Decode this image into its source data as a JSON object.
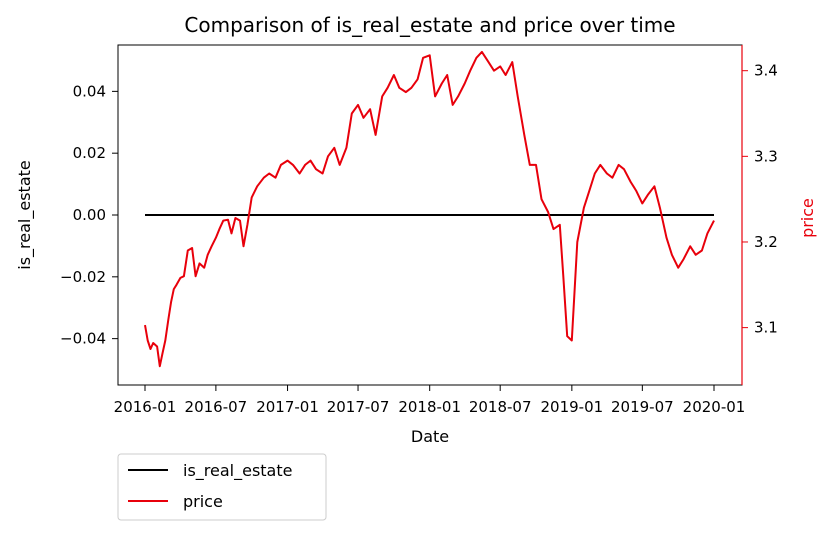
{
  "chart_data": {
    "type": "line",
    "title": "Comparison of is_real_estate and price over time",
    "xlabel": "Date",
    "ylabel_left": "is_real_estate",
    "ylabel_right": "price",
    "x_ticks": [
      "2016-01",
      "2016-07",
      "2017-01",
      "2017-07",
      "2018-01",
      "2018-07",
      "2019-01",
      "2019-07",
      "2020-01"
    ],
    "y_left_ticks": [
      "−0.04",
      "−0.02",
      "0.00",
      "0.02",
      "0.04"
    ],
    "y_right_ticks": [
      "3.1",
      "3.2",
      "3.3",
      "3.4"
    ],
    "y_left_lim": [
      -0.055,
      0.055
    ],
    "y_right_lim": [
      3.033,
      3.43
    ],
    "grid": false,
    "legend_position": "below-left",
    "colors": {
      "is_real_estate": "#000000",
      "price": "#e8000b",
      "right_axis": "#e8000b"
    },
    "series": [
      {
        "name": "is_real_estate",
        "axis": "left",
        "x": [
          "2016-01-01",
          "2020-01-01"
        ],
        "values": [
          0.0,
          0.0
        ]
      },
      {
        "name": "price",
        "axis": "right",
        "x": [
          "2016-01-01",
          "2016-01-08",
          "2016-01-15",
          "2016-01-22",
          "2016-02-01",
          "2016-02-08",
          "2016-02-15",
          "2016-02-22",
          "2016-03-01",
          "2016-03-08",
          "2016-03-15",
          "2016-03-22",
          "2016-04-01",
          "2016-04-10",
          "2016-04-20",
          "2016-05-01",
          "2016-05-10",
          "2016-05-20",
          "2016-06-01",
          "2016-06-10",
          "2016-06-20",
          "2016-07-01",
          "2016-07-10",
          "2016-07-20",
          "2016-08-01",
          "2016-08-10",
          "2016-08-20",
          "2016-09-01",
          "2016-09-10",
          "2016-09-20",
          "2016-10-01",
          "2016-10-15",
          "2016-11-01",
          "2016-11-15",
          "2016-12-01",
          "2016-12-15",
          "2017-01-01",
          "2017-01-15",
          "2017-02-01",
          "2017-02-15",
          "2017-03-01",
          "2017-03-15",
          "2017-04-01",
          "2017-04-15",
          "2017-05-01",
          "2017-05-15",
          "2017-06-01",
          "2017-06-15",
          "2017-07-01",
          "2017-07-15",
          "2017-08-01",
          "2017-08-15",
          "2017-09-01",
          "2017-09-15",
          "2017-10-01",
          "2017-10-15",
          "2017-11-01",
          "2017-11-15",
          "2017-12-01",
          "2017-12-15",
          "2018-01-01",
          "2018-01-15",
          "2018-02-01",
          "2018-02-15",
          "2018-03-01",
          "2018-03-15",
          "2018-04-01",
          "2018-04-15",
          "2018-05-01",
          "2018-05-15",
          "2018-06-01",
          "2018-06-15",
          "2018-07-01",
          "2018-07-15",
          "2018-08-01",
          "2018-08-15",
          "2018-09-01",
          "2018-09-15",
          "2018-10-01",
          "2018-10-15",
          "2018-11-01",
          "2018-11-15",
          "2018-12-01",
          "2018-12-10",
          "2018-12-20",
          "2019-01-01",
          "2019-01-15",
          "2019-02-01",
          "2019-02-15",
          "2019-03-01",
          "2019-03-15",
          "2019-04-01",
          "2019-04-15",
          "2019-05-01",
          "2019-05-15",
          "2019-06-01",
          "2019-06-15",
          "2019-07-01",
          "2019-07-15",
          "2019-08-01",
          "2019-08-15",
          "2019-09-01",
          "2019-09-15",
          "2019-10-01",
          "2019-10-15",
          "2019-11-01",
          "2019-11-15",
          "2019-12-01",
          "2019-12-15",
          "2020-01-01"
        ],
        "values": [
          3.103,
          3.085,
          3.075,
          3.082,
          3.078,
          3.055,
          3.07,
          3.085,
          3.11,
          3.13,
          3.145,
          3.15,
          3.158,
          3.16,
          3.19,
          3.193,
          3.16,
          3.175,
          3.17,
          3.185,
          3.195,
          3.205,
          3.215,
          3.225,
          3.226,
          3.21,
          3.228,
          3.225,
          3.195,
          3.22,
          3.252,
          3.265,
          3.275,
          3.28,
          3.275,
          3.29,
          3.295,
          3.29,
          3.28,
          3.29,
          3.295,
          3.285,
          3.28,
          3.3,
          3.31,
          3.29,
          3.31,
          3.35,
          3.36,
          3.345,
          3.355,
          3.325,
          3.37,
          3.38,
          3.395,
          3.38,
          3.375,
          3.38,
          3.39,
          3.415,
          3.418,
          3.37,
          3.385,
          3.395,
          3.36,
          3.37,
          3.385,
          3.4,
          3.415,
          3.422,
          3.41,
          3.4,
          3.405,
          3.395,
          3.41,
          3.37,
          3.325,
          3.29,
          3.29,
          3.25,
          3.235,
          3.215,
          3.22,
          3.16,
          3.09,
          3.085,
          3.2,
          3.24,
          3.26,
          3.28,
          3.29,
          3.28,
          3.275,
          3.29,
          3.285,
          3.27,
          3.26,
          3.245,
          3.255,
          3.265,
          3.24,
          3.205,
          3.185,
          3.17,
          3.18,
          3.195,
          3.185,
          3.19,
          3.21,
          3.225
        ]
      }
    ]
  }
}
